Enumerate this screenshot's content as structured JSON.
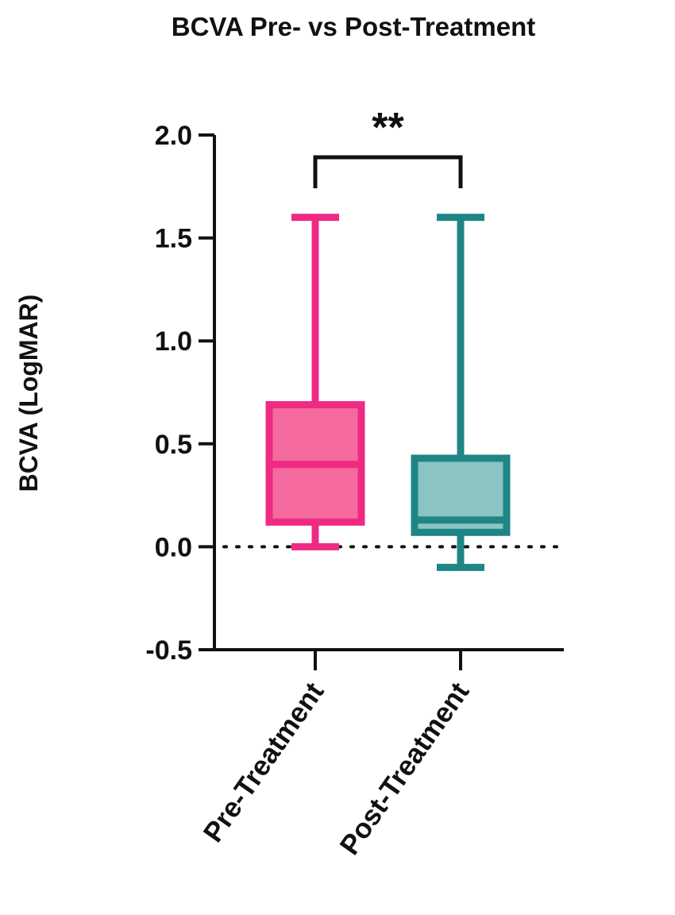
{
  "chart_data": {
    "type": "box",
    "title": "BCVA Pre- vs Post-Treatment",
    "xlabel": "",
    "ylabel": "BCVA (LogMAR)",
    "ylim": [
      -0.5,
      2.0
    ],
    "yticks": [
      -0.5,
      0.0,
      0.5,
      1.0,
      1.5,
      2.0
    ],
    "ytick_labels": [
      "-0.5",
      "0.0",
      "0.5",
      "1.0",
      "1.5",
      "2.0"
    ],
    "categories": [
      "Pre-Treatment",
      "Post-Treatment"
    ],
    "boxes": [
      {
        "category": "Pre-Treatment",
        "min": 0.0,
        "q1": 0.12,
        "median": 0.4,
        "q3": 0.69,
        "max": 1.6,
        "stroke": "#ee2a85",
        "fill": "#f56a9e"
      },
      {
        "category": "Post-Treatment",
        "min": -0.1,
        "q1": 0.07,
        "median": 0.13,
        "q3": 0.43,
        "max": 1.6,
        "stroke": "#1f8585",
        "fill": "#8cc3c3"
      }
    ],
    "reference_line": {
      "y": 0.0,
      "style": "dotted"
    },
    "significance": {
      "between": [
        "Pre-Treatment",
        "Post-Treatment"
      ],
      "label": "**"
    },
    "grid": false,
    "legend": "none"
  }
}
